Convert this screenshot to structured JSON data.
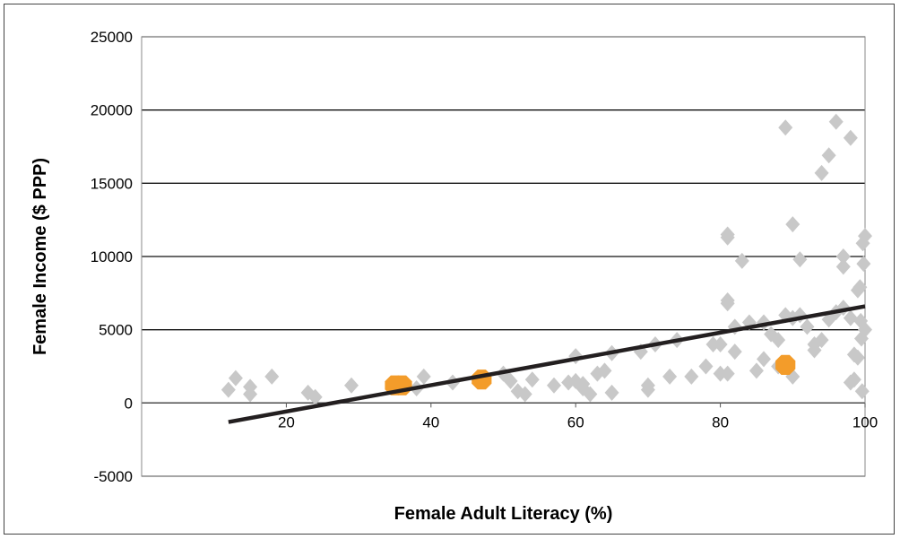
{
  "chart_data": {
    "type": "scatter",
    "title": "",
    "xlabel": "Female Adult Literacy (%)",
    "ylabel": "Female Income ($ PPP)",
    "xlim": [
      0,
      100
    ],
    "ylim": [
      -5000,
      25000
    ],
    "x_ticks": [
      20,
      40,
      60,
      80,
      100
    ],
    "y_ticks": [
      -5000,
      0,
      5000,
      10000,
      15000,
      20000,
      25000
    ],
    "grid": "horizontal",
    "legend": "none",
    "series": [
      {
        "marker": "diamond",
        "color": "#c8c8c8",
        "points": [
          [
            12,
            900
          ],
          [
            13,
            1700
          ],
          [
            15,
            600
          ],
          [
            15,
            1100
          ],
          [
            18,
            1800
          ],
          [
            23,
            700
          ],
          [
            24,
            400
          ],
          [
            29,
            1200
          ],
          [
            35,
            1200
          ],
          [
            38,
            1000
          ],
          [
            39,
            1800
          ],
          [
            43,
            1400
          ],
          [
            50,
            2000
          ],
          [
            51,
            1500
          ],
          [
            52,
            800
          ],
          [
            53,
            600
          ],
          [
            54,
            1600
          ],
          [
            57,
            1200
          ],
          [
            59,
            1400
          ],
          [
            60,
            3200
          ],
          [
            60,
            1500
          ],
          [
            61,
            1000
          ],
          [
            61,
            1300
          ],
          [
            62,
            600
          ],
          [
            63,
            2000
          ],
          [
            64,
            2200
          ],
          [
            65,
            700
          ],
          [
            65,
            3400
          ],
          [
            69,
            3500
          ],
          [
            70,
            900
          ],
          [
            70,
            1200
          ],
          [
            71,
            4000
          ],
          [
            73,
            1800
          ],
          [
            74,
            4300
          ],
          [
            76,
            1800
          ],
          [
            78,
            2500
          ],
          [
            79,
            4000
          ],
          [
            80,
            2000
          ],
          [
            80,
            4000
          ],
          [
            81,
            2000
          ],
          [
            81,
            6800
          ],
          [
            81,
            7000
          ],
          [
            81,
            11300
          ],
          [
            81,
            11500
          ],
          [
            82,
            5200
          ],
          [
            82,
            3500
          ],
          [
            83,
            9700
          ],
          [
            84,
            5500
          ],
          [
            85,
            2200
          ],
          [
            86,
            5500
          ],
          [
            86,
            3000
          ],
          [
            87,
            4700
          ],
          [
            88,
            4300
          ],
          [
            88,
            2500
          ],
          [
            89,
            6000
          ],
          [
            89,
            18800
          ],
          [
            90,
            12200
          ],
          [
            90,
            5800
          ],
          [
            90,
            1800
          ],
          [
            91,
            9800
          ],
          [
            91,
            6000
          ],
          [
            92,
            5200
          ],
          [
            93,
            3600
          ],
          [
            93,
            4000
          ],
          [
            94,
            4300
          ],
          [
            94,
            15700
          ],
          [
            95,
            5700
          ],
          [
            95,
            16900
          ],
          [
            96,
            6200
          ],
          [
            96,
            19200
          ],
          [
            97,
            6500
          ],
          [
            97,
            9300
          ],
          [
            97,
            10000
          ],
          [
            98,
            1400
          ],
          [
            98,
            5800
          ],
          [
            98,
            18100
          ],
          [
            98.5,
            1600
          ],
          [
            98.5,
            3300
          ],
          [
            99,
            3100
          ],
          [
            99,
            7700
          ],
          [
            99.3,
            7900
          ],
          [
            99.4,
            5600
          ],
          [
            99.5,
            4400
          ],
          [
            99.6,
            800
          ],
          [
            99.7,
            10900
          ],
          [
            99.8,
            9500
          ],
          [
            100,
            11400
          ],
          [
            100,
            5000
          ]
        ]
      },
      {
        "marker": "octagon",
        "color": "#f39c2a",
        "points": [
          [
            35,
            1200
          ],
          [
            36,
            1200
          ],
          [
            47,
            1600
          ],
          [
            89,
            2600
          ]
        ]
      }
    ],
    "trendline": {
      "x": [
        12,
        100
      ],
      "y": [
        -1300,
        6600
      ],
      "color": "#231f20"
    }
  }
}
